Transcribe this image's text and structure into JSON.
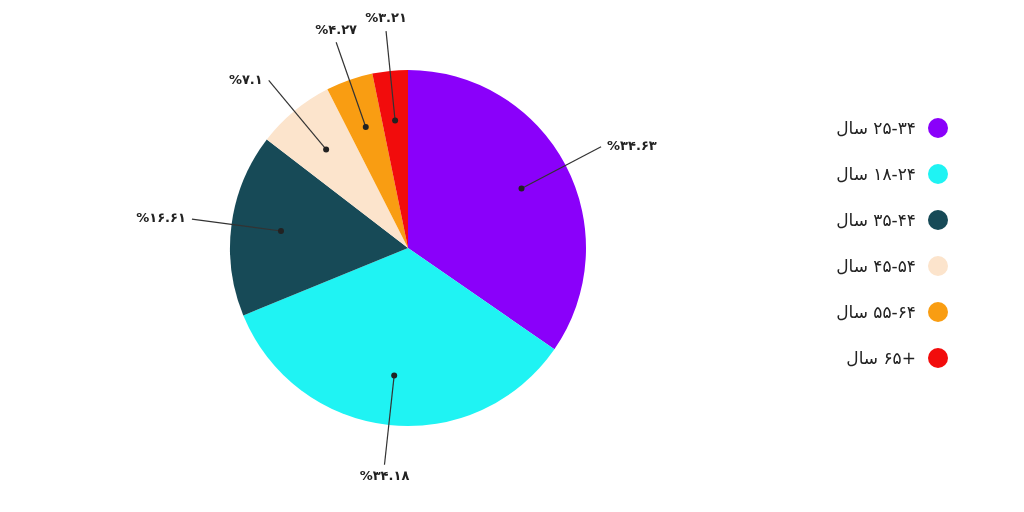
{
  "chart_data": {
    "type": "pie",
    "categories": [
      "۲۵-۳۴ سال",
      "۱۸-۲۴ سال",
      "۳۵-۴۴ سال",
      "۴۵-۵۴ سال",
      "۵۵-۶۴ سال",
      "+۶۵ سال"
    ],
    "values": [
      34.63,
      34.18,
      16.61,
      7.1,
      4.27,
      3.21
    ],
    "value_labels": [
      "%۳۴.۶۳",
      "%۳۴.۱۸",
      "%۱۶.۶۱",
      "%۷.۱",
      "%۴.۲۷",
      "%۳.۲۱"
    ],
    "colors": [
      "#8a00fa",
      "#1ff3f3",
      "#174a57",
      "#fce4cc",
      "#f99d12",
      "#f20c0c"
    ],
    "legend": "right"
  }
}
